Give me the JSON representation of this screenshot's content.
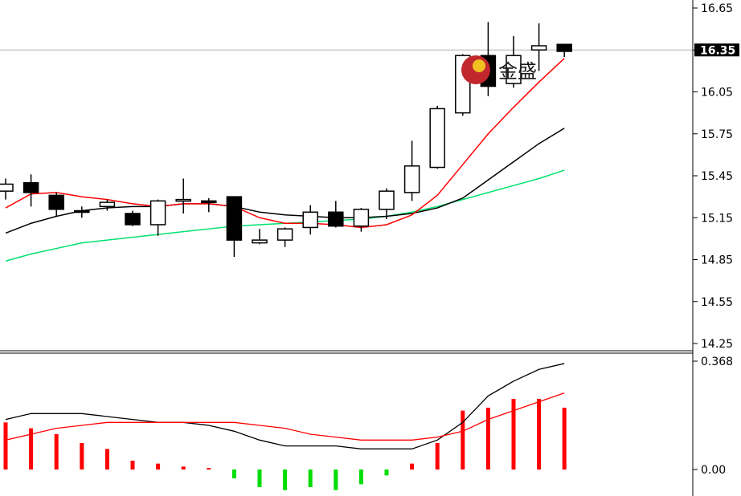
{
  "chart_data": [
    {
      "type": "candlestick",
      "ylim": [
        14.25,
        16.65
      ],
      "y_ticks": [
        "16.65",
        "16.35",
        "16.05",
        "15.75",
        "15.45",
        "15.15",
        "14.85",
        "14.55",
        "14.25"
      ],
      "current_price_label": "16.35",
      "current_price": 16.35,
      "candles": [
        {
          "o": 15.34,
          "h": 15.43,
          "l": 15.28,
          "c": 15.39
        },
        {
          "o": 15.4,
          "h": 15.46,
          "l": 15.23,
          "c": 15.33
        },
        {
          "o": 15.31,
          "h": 15.33,
          "l": 15.16,
          "c": 15.21
        },
        {
          "o": 15.2,
          "h": 15.23,
          "l": 15.15,
          "c": 15.19
        },
        {
          "o": 15.23,
          "h": 15.28,
          "l": 15.2,
          "c": 15.26
        },
        {
          "o": 15.18,
          "h": 15.2,
          "l": 15.09,
          "c": 15.1
        },
        {
          "o": 15.1,
          "h": 15.28,
          "l": 15.02,
          "c": 15.27
        },
        {
          "o": 15.27,
          "h": 15.43,
          "l": 15.18,
          "c": 15.28
        },
        {
          "o": 15.27,
          "h": 15.29,
          "l": 15.19,
          "c": 15.26
        },
        {
          "o": 15.3,
          "h": 15.3,
          "l": 14.87,
          "c": 14.99
        },
        {
          "o": 14.97,
          "h": 15.07,
          "l": 14.96,
          "c": 14.99
        },
        {
          "o": 14.99,
          "h": 15.08,
          "l": 14.94,
          "c": 15.07
        },
        {
          "o": 15.08,
          "h": 15.24,
          "l": 15.03,
          "c": 15.19
        },
        {
          "o": 15.19,
          "h": 15.27,
          "l": 15.08,
          "c": 15.09
        },
        {
          "o": 15.09,
          "h": 15.22,
          "l": 15.05,
          "c": 15.21
        },
        {
          "o": 15.21,
          "h": 15.36,
          "l": 15.14,
          "c": 15.34
        },
        {
          "o": 15.33,
          "h": 15.7,
          "l": 15.27,
          "c": 15.52
        },
        {
          "o": 15.51,
          "h": 15.95,
          "l": 15.5,
          "c": 15.93
        },
        {
          "o": 15.9,
          "h": 16.32,
          "l": 15.88,
          "c": 16.31
        },
        {
          "o": 16.31,
          "h": 16.55,
          "l": 16.02,
          "c": 16.09
        },
        {
          "o": 16.11,
          "h": 16.45,
          "l": 16.08,
          "c": 16.31
        },
        {
          "o": 16.35,
          "h": 16.54,
          "l": 16.2,
          "c": 16.38
        },
        {
          "o": 16.39,
          "h": 16.39,
          "l": 16.3,
          "c": 16.34
        }
      ],
      "ma_fast": {
        "color": "#ff0000",
        "values": [
          15.22,
          15.32,
          15.33,
          15.3,
          15.28,
          15.25,
          15.23,
          15.25,
          15.25,
          15.23,
          15.15,
          15.11,
          15.11,
          15.1,
          15.08,
          15.1,
          15.17,
          15.31,
          15.53,
          15.75,
          15.94,
          16.12,
          16.29
        ]
      },
      "ma_mid": {
        "color": "#000000",
        "values": [
          15.04,
          15.11,
          15.16,
          15.2,
          15.22,
          15.23,
          15.23,
          15.25,
          15.25,
          15.23,
          15.19,
          15.17,
          15.16,
          15.15,
          15.15,
          15.16,
          15.18,
          15.22,
          15.29,
          15.42,
          15.55,
          15.68,
          15.79
        ]
      },
      "ma_slow": {
        "color": "#00e070",
        "values": [
          14.84,
          14.89,
          14.93,
          14.97,
          14.99,
          15.01,
          15.03,
          15.05,
          15.07,
          15.09,
          15.1,
          15.11,
          15.12,
          15.13,
          15.14,
          15.16,
          15.19,
          15.23,
          15.28,
          15.33,
          15.38,
          15.43,
          15.49
        ]
      }
    },
    {
      "type": "bar",
      "ylim": [
        -0.06,
        0.368
      ],
      "y_ticks": [
        "0.368",
        "0.00"
      ],
      "histogram": [
        0.16,
        0.14,
        0.12,
        0.09,
        0.07,
        0.03,
        0.02,
        0.01,
        0.005,
        -0.03,
        -0.06,
        -0.07,
        -0.06,
        -0.07,
        -0.05,
        -0.02,
        0.02,
        0.09,
        0.2,
        0.21,
        0.24,
        0.24,
        0.21
      ],
      "colors": {
        "positive": "#ff0000",
        "negative": "#00dd00"
      },
      "line_black": [
        0.17,
        0.19,
        0.19,
        0.19,
        0.18,
        0.17,
        0.16,
        0.16,
        0.15,
        0.13,
        0.1,
        0.08,
        0.08,
        0.08,
        0.07,
        0.07,
        0.07,
        0.1,
        0.16,
        0.25,
        0.3,
        0.34,
        0.36
      ],
      "line_red": [
        0.1,
        0.12,
        0.14,
        0.15,
        0.16,
        0.16,
        0.16,
        0.16,
        0.16,
        0.16,
        0.15,
        0.14,
        0.12,
        0.11,
        0.1,
        0.1,
        0.1,
        0.11,
        0.13,
        0.17,
        0.2,
        0.23,
        0.26
      ]
    }
  ],
  "watermark": {
    "text": "金盛"
  }
}
